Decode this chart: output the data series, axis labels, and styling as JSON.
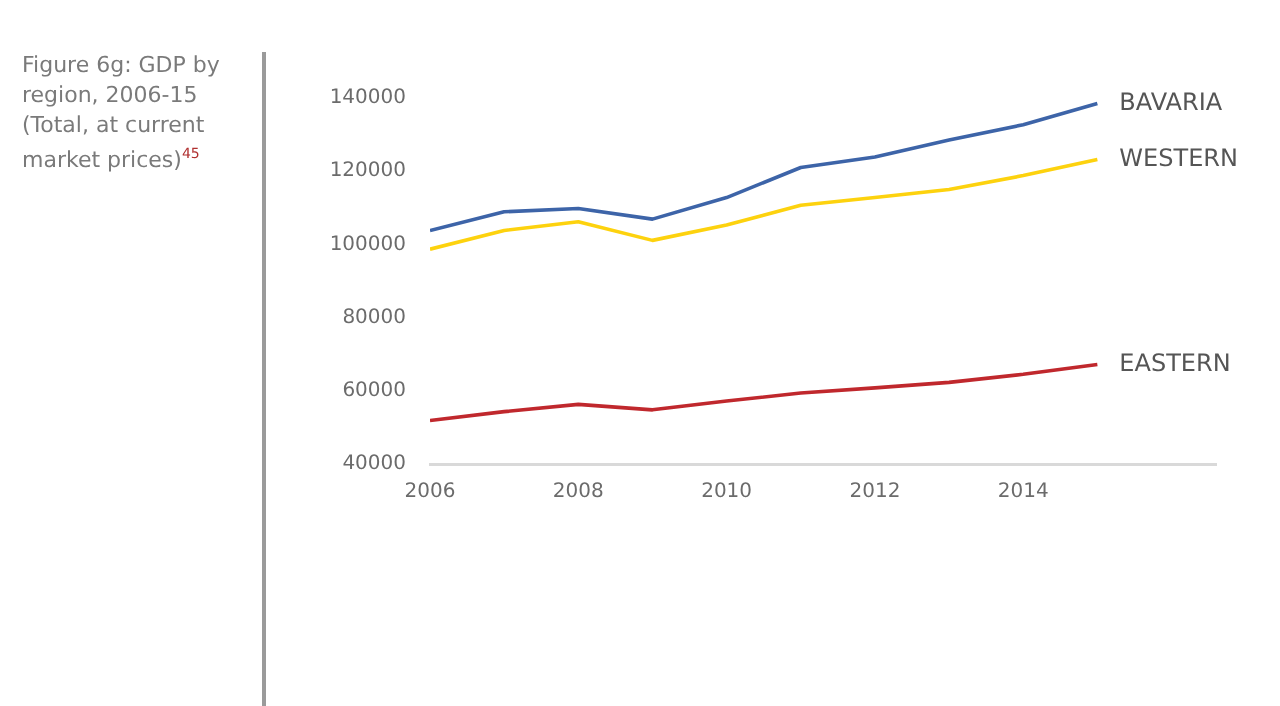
{
  "chart_data": {
    "type": "line",
    "title": "Figure 6g: GDP by region, 2006-15",
    "subtitle": "(Total, at current market prices)$^{45}$",
    "x": [
      2006,
      2007,
      2008,
      2009,
      2010,
      2011,
      2012,
      2013,
      2014,
      2015
    ],
    "xlim": [
      2006,
      2016.6
    ],
    "xticks": [
      2006,
      2008,
      2010,
      2012,
      2014
    ],
    "ylim": [
      40000,
      140000
    ],
    "yticks": [
      40000,
      60000,
      80000,
      100000,
      120000,
      140000
    ],
    "grid": false,
    "legend": false,
    "marker": "none",
    "line_style": "solid",
    "series": [
      {
        "name": "BAVARIA",
        "color": "#3d64a8",
        "values": [
          103800,
          108900,
          109800,
          106900,
          112800,
          121000,
          123900,
          128500,
          132700,
          138500
        ]
      },
      {
        "name": "WESTERN",
        "color": "#fdd20e",
        "values": [
          98700,
          103800,
          106200,
          101100,
          105300,
          110700,
          112800,
          115000,
          118800,
          123200
        ]
      },
      {
        "name": "EASTERN",
        "color": "#c0282d",
        "values": [
          51900,
          54300,
          56300,
          54800,
          57200,
          59400,
          60800,
          62300,
          64500,
          67200
        ]
      }
    ]
  }
}
